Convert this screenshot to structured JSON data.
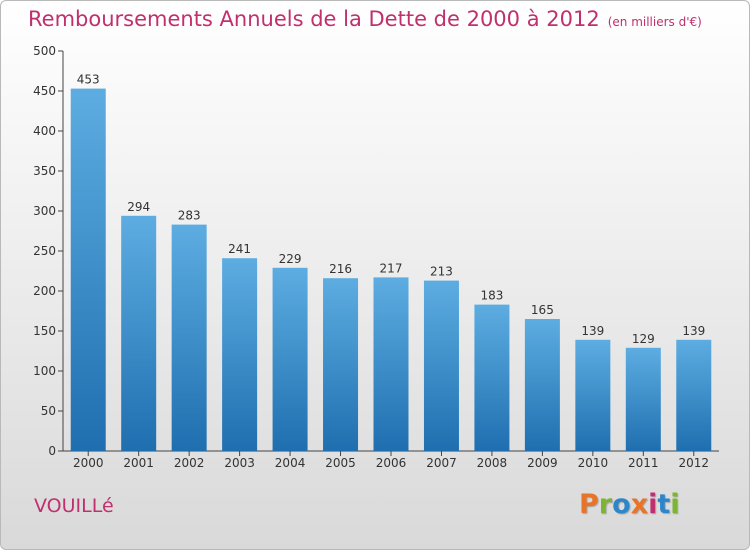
{
  "title": "Remboursements Annuels de la Dette de 2000 à 2012",
  "unit_note": "(en milliers d'€)",
  "place_name": "VOUILLé",
  "logo_text": "Proxiti",
  "colors": {
    "title": "#c0306e",
    "bar_top": "#5dade2",
    "bar_bottom": "#1f6fb0",
    "logo": [
      "#e8742a",
      "#7bb531",
      "#2e86c9",
      "#e8742a",
      "#c0306e",
      "#2e86c9",
      "#7bb531"
    ]
  },
  "chart_data": {
    "type": "bar",
    "title": "Remboursements Annuels de la Dette de 2000 à 2012",
    "xlabel": "",
    "ylabel": "",
    "categories": [
      "2000",
      "2001",
      "2002",
      "2003",
      "2004",
      "2005",
      "2006",
      "2007",
      "2008",
      "2009",
      "2010",
      "2011",
      "2012"
    ],
    "values": [
      453,
      294,
      283,
      241,
      229,
      216,
      217,
      213,
      183,
      165,
      139,
      129,
      139
    ],
    "ylim": [
      0,
      500
    ],
    "yticks": [
      0,
      50,
      100,
      150,
      200,
      250,
      300,
      350,
      400,
      450,
      500
    ],
    "grid": false,
    "data_labels": true
  }
}
